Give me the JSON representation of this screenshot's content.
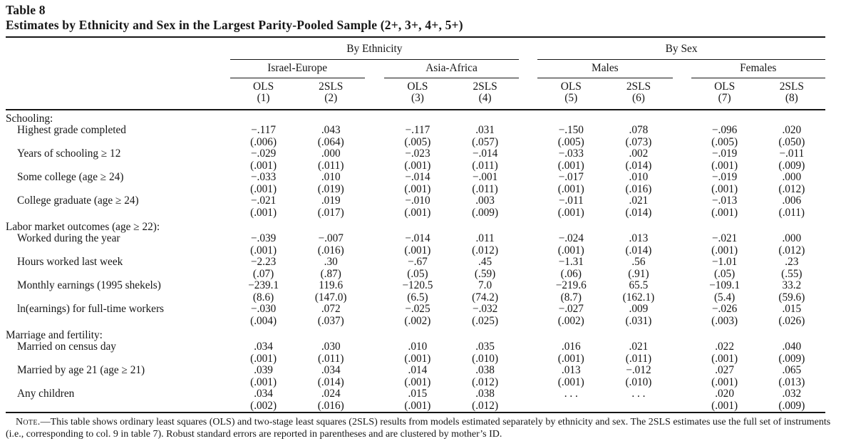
{
  "title": {
    "label": "Table 8",
    "caption": "Estimates by Ethnicity and Sex in the Largest Parity-Pooled Sample (2+, 3+, 4+, 5+)"
  },
  "header": {
    "groups": [
      {
        "label": "By Ethnicity"
      },
      {
        "label": "By Sex"
      }
    ],
    "subgroups": [
      "Israel-Europe",
      "Asia-Africa",
      "Males",
      "Females"
    ],
    "columns": [
      {
        "method": "OLS",
        "number": "(1)"
      },
      {
        "method": "2SLS",
        "number": "(2)"
      },
      {
        "method": "OLS",
        "number": "(3)"
      },
      {
        "method": "2SLS",
        "number": "(4)"
      },
      {
        "method": "OLS",
        "number": "(5)"
      },
      {
        "method": "2SLS",
        "number": "(6)"
      },
      {
        "method": "OLS",
        "number": "(7)"
      },
      {
        "method": "2SLS",
        "number": "(8)"
      }
    ]
  },
  "sections": [
    {
      "label": "Schooling:",
      "rows": [
        {
          "label": "Highest grade completed",
          "est": [
            "−.117",
            ".043",
            "−.117",
            ".031",
            "−.150",
            ".078",
            "−.096",
            ".020"
          ],
          "se": [
            "(.006)",
            "(.064)",
            "(.005)",
            "(.057)",
            "(.005)",
            "(.073)",
            "(.005)",
            "(.050)"
          ]
        },
        {
          "label": "Years of schooling ≥ 12",
          "est": [
            "−.029",
            ".000",
            "−.023",
            "−.014",
            "−.033",
            ".002",
            "−.019",
            "−.011"
          ],
          "se": [
            "(.001)",
            "(.011)",
            "(.001)",
            "(.011)",
            "(.001)",
            "(.014)",
            "(.001)",
            "(.009)"
          ]
        },
        {
          "label": "Some college (age ≥ 24)",
          "est": [
            "−.033",
            ".010",
            "−.014",
            "−.001",
            "−.017",
            ".010",
            "−.019",
            ".000"
          ],
          "se": [
            "(.001)",
            "(.019)",
            "(.001)",
            "(.011)",
            "(.001)",
            "(.016)",
            "(.001)",
            "(.012)"
          ]
        },
        {
          "label": "College graduate (age ≥ 24)",
          "est": [
            "−.021",
            ".019",
            "−.010",
            ".003",
            "−.011",
            ".021",
            "−.013",
            ".006"
          ],
          "se": [
            "(.001)",
            "(.017)",
            "(.001)",
            "(.009)",
            "(.001)",
            "(.014)",
            "(.001)",
            "(.011)"
          ]
        }
      ]
    },
    {
      "label": "Labor market outcomes (age ≥ 22):",
      "rows": [
        {
          "label": "Worked during the year",
          "est": [
            "−.039",
            "−.007",
            "−.014",
            ".011",
            "−.024",
            ".013",
            "−.021",
            ".000"
          ],
          "se": [
            "(.001)",
            "(.016)",
            "(.001)",
            "(.012)",
            "(.001)",
            "(.014)",
            "(.001)",
            "(.012)"
          ]
        },
        {
          "label": "Hours worked last week",
          "est": [
            "−2.23",
            ".30",
            "−.67",
            ".45",
            "−1.31",
            ".56",
            "−1.01",
            ".23"
          ],
          "se": [
            "(.07)",
            "(.87)",
            "(.05)",
            "(.59)",
            "(.06)",
            "(.91)",
            "(.05)",
            "(.55)"
          ]
        },
        {
          "label": "Monthly earnings (1995 shekels)",
          "est": [
            "−239.1",
            "119.6",
            "−120.5",
            "7.0",
            "−219.6",
            "65.5",
            "−109.1",
            "33.2"
          ],
          "se": [
            "(8.6)",
            "(147.0)",
            "(6.5)",
            "(74.2)",
            "(8.7)",
            "(162.1)",
            "(5.4)",
            "(59.6)"
          ]
        },
        {
          "label": "ln(earnings) for full-time workers",
          "est": [
            "−.030",
            ".072",
            "−.025",
            "−.032",
            "−.027",
            ".009",
            "−.026",
            ".015"
          ],
          "se": [
            "(.004)",
            "(.037)",
            "(.002)",
            "(.025)",
            "(.002)",
            "(.031)",
            "(.003)",
            "(.026)"
          ]
        }
      ]
    },
    {
      "label": "Marriage and fertility:",
      "rows": [
        {
          "label": "Married on census day",
          "est": [
            ".034",
            ".030",
            ".010",
            ".035",
            ".016",
            ".021",
            ".022",
            ".040"
          ],
          "se": [
            "(.001)",
            "(.011)",
            "(.001)",
            "(.010)",
            "(.001)",
            "(.011)",
            "(.001)",
            "(.009)"
          ]
        },
        {
          "label": "Married by age 21 (age ≥ 21)",
          "est": [
            ".039",
            ".034",
            ".014",
            ".038",
            ".013",
            "−.012",
            ".027",
            ".065"
          ],
          "se": [
            "(.001)",
            "(.014)",
            "(.001)",
            "(.012)",
            "(.001)",
            "(.010)",
            "(.001)",
            "(.013)"
          ]
        },
        {
          "label": "Any children",
          "est": [
            ".034",
            ".024",
            ".015",
            ".038",
            ". . .",
            ". . .",
            ".020",
            ".032"
          ],
          "se": [
            "(.002)",
            "(.016)",
            "(.001)",
            "(.012)",
            "",
            "",
            "(.001)",
            "(.009)"
          ]
        }
      ]
    }
  ],
  "note": {
    "label": "Note.",
    "text": "—This table shows ordinary least squares (OLS) and two-stage least squares (2SLS) results from models estimated separately by ethnicity and sex. The 2SLS estimates use the full set of instruments (i.e., corresponding to col. 9 in table 7). Robust standard errors are reported in parentheses and are clustered by mother’s ID."
  }
}
